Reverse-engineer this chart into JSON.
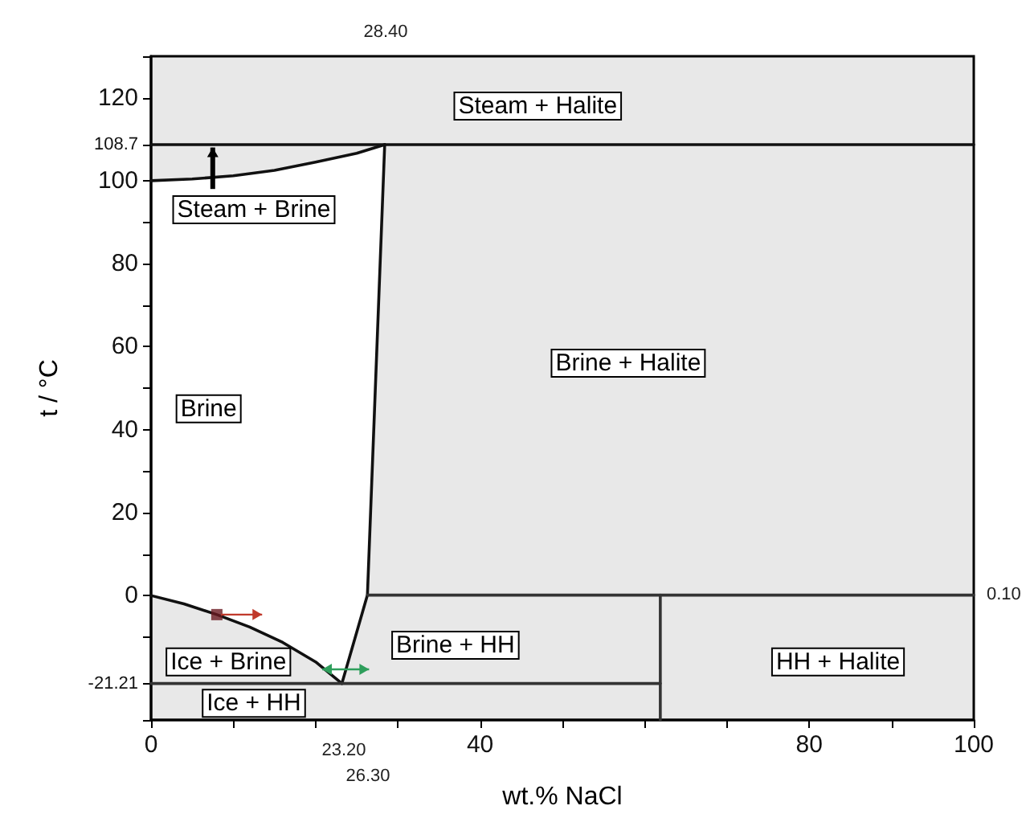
{
  "chart_data": {
    "type": "line",
    "xlabel": "wt.% NaCl",
    "ylabel": "t / °C",
    "xlim": [
      0,
      100
    ],
    "ylim": [
      -30,
      130
    ],
    "xticks": [
      0,
      {
        "value": 10,
        "label": null
      },
      {
        "value": 20,
        "label": null
      },
      {
        "value": 30,
        "label": null
      },
      40,
      {
        "value": 50,
        "label": null
      },
      {
        "value": 60,
        "label": null
      },
      {
        "value": 70,
        "label": null
      },
      80,
      {
        "value": 90,
        "label": null
      },
      100
    ],
    "yticks": [
      {
        "value": -30,
        "label": null
      },
      {
        "value": -21.21,
        "label": "-21.21"
      },
      {
        "value": -10,
        "label": null
      },
      0,
      {
        "value": 10,
        "label": null
      },
      20,
      {
        "value": 30,
        "label": null
      },
      40,
      {
        "value": 50,
        "label": null
      },
      60,
      {
        "value": 70,
        "label": null
      },
      80,
      {
        "value": 90,
        "label": null
      },
      100,
      {
        "value": 108.7,
        "label": "108.7"
      },
      120,
      {
        "value": 130,
        "label": null
      }
    ],
    "marker": "none",
    "line_style": "solid",
    "series": [
      {
        "color": "#111111",
        "x": [
          0,
          5,
          10,
          15,
          20,
          25,
          28.4
        ],
        "values": [
          100,
          100.4,
          101.2,
          102.5,
          104.5,
          106.6,
          108.7
        ]
      },
      {
        "color": "#111111",
        "x": [
          23.2,
          26.3,
          28.4
        ],
        "values": [
          -21.21,
          0.1,
          108.7
        ]
      },
      {
        "color": "#111111",
        "x": [
          0,
          4,
          8,
          12,
          16,
          20,
          23.2
        ],
        "values": [
          0,
          -2,
          -4.6,
          -7.6,
          -11.3,
          -16,
          -21.21
        ]
      },
      {
        "color": "#111111",
        "x": [
          0,
          100
        ],
        "values": [
          108.7,
          108.7
        ]
      },
      {
        "color": "#333333",
        "x": [
          0,
          61.9
        ],
        "values": [
          -21.21,
          -21.21
        ]
      },
      {
        "color": "#333333",
        "x": [
          26.3,
          100
        ],
        "values": [
          0.1,
          0.1
        ]
      },
      {
        "color": "#333333",
        "x": [
          61.9,
          61.9
        ],
        "values": [
          -30,
          0.1
        ]
      },
      {
        "type": "scatter",
        "marker": "square",
        "color": "#6b1a22",
        "x": [
          8
        ],
        "values": [
          -4.6
        ]
      }
    ],
    "annotations": [
      "Steam + Halite",
      "Steam + Brine",
      "Brine",
      "Brine + Halite",
      "Brine + HH",
      "HH + Halite",
      "Ice + Brine",
      "Ice + HH",
      "28.40",
      "0.10",
      "23.20",
      "26.30"
    ]
  }
}
